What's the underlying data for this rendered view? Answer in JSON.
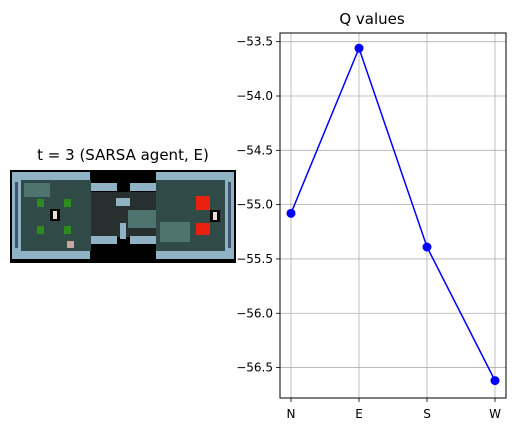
{
  "game_panel": {
    "title": "t = 3 (SARSA agent, E)",
    "colors": {
      "wall": "#8fb2c4",
      "wall_dark": "#3e5666",
      "floor": "#2f4a47",
      "floor_lit": "#4f7470",
      "corridor": "#27302f",
      "void": "#000000",
      "lava": "#e8220e",
      "plant": "#2e8b1e",
      "agent": "#e8e0d8"
    }
  },
  "chart_data": {
    "type": "line",
    "title": "Q values",
    "categories": [
      "N",
      "E",
      "S",
      "W"
    ],
    "values": [
      -55.08,
      -53.56,
      -55.39,
      -56.62
    ],
    "ylim": [
      -56.78,
      -53.42
    ],
    "yticks": [
      -53.5,
      -54.0,
      -54.5,
      -55.0,
      -55.5,
      -56.0,
      -56.5
    ],
    "ytick_labels": [
      "−53.5",
      "−54.0",
      "−54.5",
      "−55.0",
      "−55.5",
      "−56.0",
      "−56.5"
    ],
    "grid": true,
    "color": "#0000ff",
    "marker": "circle"
  }
}
